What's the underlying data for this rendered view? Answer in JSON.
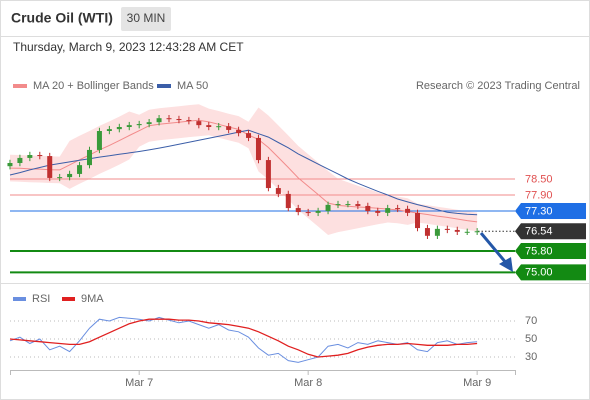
{
  "header": {
    "title": "Crude Oil (WTI)",
    "timeframe": "30 MIN",
    "datetime": "Thursday, March 9, 2023 12:43:28 AM CET"
  },
  "chart_data": [
    {
      "type": "candlestick",
      "credit": "Research © 2023 Trading Central",
      "categories": [
        null,
        null,
        null,
        null,
        null,
        null,
        null,
        null,
        null,
        null,
        null,
        null,
        null,
        "Mar 7",
        null,
        null,
        null,
        null,
        null,
        null,
        null,
        null,
        null,
        null,
        null,
        null,
        null,
        null,
        null,
        null,
        "Mar 8",
        null,
        null,
        null,
        null,
        null,
        null,
        null,
        null,
        null,
        null,
        null,
        null,
        null,
        null,
        null,
        null,
        "Mar 9",
        null,
        null,
        null
      ],
      "open": [
        78.98,
        79.1,
        79.29,
        79.4,
        79.36,
        78.54,
        78.57,
        78.69,
        79.02,
        79.59,
        80.3,
        80.37,
        80.45,
        80.52,
        80.56,
        80.63,
        80.78,
        80.75,
        80.71,
        80.67,
        80.52,
        80.45,
        80.48,
        80.34,
        80.22,
        80.04,
        79.21,
        78.16,
        77.94,
        77.41,
        77.26,
        77.23,
        77.3,
        77.53,
        77.56,
        77.56,
        77.49,
        77.3,
        77.23,
        77.41,
        77.38,
        77.23,
        76.66,
        76.37,
        76.63,
        76.59,
        76.52,
        76.52,
        null,
        null,
        null
      ],
      "high": [
        79.22,
        79.41,
        79.52,
        79.52,
        79.48,
        78.69,
        78.81,
        79.14,
        79.71,
        80.42,
        80.49,
        80.57,
        80.64,
        80.68,
        80.75,
        80.9,
        80.9,
        80.87,
        80.83,
        80.79,
        80.64,
        80.6,
        80.6,
        80.46,
        80.34,
        80.16,
        79.33,
        78.28,
        78.06,
        77.53,
        77.38,
        77.42,
        77.65,
        77.68,
        77.68,
        77.68,
        77.61,
        77.42,
        77.53,
        77.53,
        77.5,
        77.35,
        76.78,
        76.75,
        76.75,
        76.71,
        76.64,
        76.66,
        null,
        null,
        null
      ],
      "low": [
        78.86,
        78.98,
        79.17,
        79.24,
        78.42,
        78.42,
        78.45,
        78.57,
        78.9,
        79.47,
        80.18,
        80.25,
        80.33,
        80.4,
        80.44,
        80.51,
        80.63,
        80.59,
        80.55,
        80.4,
        80.33,
        80.33,
        80.22,
        80.1,
        79.92,
        79.09,
        78.04,
        77.82,
        77.29,
        77.14,
        77.11,
        77.11,
        77.18,
        77.41,
        77.44,
        77.37,
        77.18,
        77.11,
        77.11,
        77.26,
        77.11,
        76.54,
        76.25,
        76.25,
        76.47,
        76.4,
        76.4,
        76.4,
        null,
        null,
        null
      ],
      "close": [
        79.1,
        79.29,
        79.4,
        79.36,
        78.54,
        78.57,
        78.69,
        79.02,
        79.59,
        80.3,
        80.37,
        80.45,
        80.52,
        80.56,
        80.63,
        80.78,
        80.75,
        80.71,
        80.67,
        80.52,
        80.45,
        80.48,
        80.34,
        80.22,
        80.04,
        79.21,
        78.16,
        77.94,
        77.41,
        77.26,
        77.23,
        77.3,
        77.53,
        77.56,
        77.56,
        77.49,
        77.3,
        77.23,
        77.41,
        77.38,
        77.23,
        76.66,
        76.37,
        76.63,
        76.59,
        76.52,
        76.52,
        76.54,
        null,
        null,
        null
      ],
      "up_color": "#3a9a3a",
      "down_color": "#c03030",
      "ylim": [
        74.6,
        81.65
      ],
      "series": [
        {
          "name": "MA 20 + Bollinger Bands",
          "color": "#f28b8b",
          "band_color": "#fde0e0",
          "values": [
            78.91,
            78.9,
            78.88,
            78.87,
            78.85,
            78.84,
            79.03,
            79.22,
            79.4,
            79.59,
            79.76,
            79.94,
            80.13,
            80.31,
            80.5,
            80.55,
            80.59,
            80.63,
            80.67,
            80.7,
            80.64,
            80.55,
            80.45,
            80.36,
            80.15,
            79.98,
            79.68,
            79.31,
            78.93,
            78.54,
            78.23,
            77.92,
            77.6,
            77.51,
            77.48,
            77.45,
            77.43,
            77.4,
            77.37,
            77.34,
            77.28,
            77.22,
            77.17,
            77.11,
            77.06,
            77.0,
            76.94,
            76.89,
            null,
            null,
            null
          ],
          "upper": [
            79.41,
            79.4,
            79.38,
            79.37,
            79.35,
            79.34,
            79.93,
            80.12,
            80.3,
            80.49,
            80.66,
            80.84,
            81.03,
            80.91,
            81.1,
            81.15,
            81.19,
            81.23,
            81.27,
            81.3,
            81.14,
            81.05,
            80.95,
            80.86,
            80.65,
            81.18,
            80.88,
            80.51,
            80.13,
            79.74,
            79.43,
            79.12,
            78.8,
            78.51,
            78.38,
            78.25,
            78.13,
            78.0,
            77.87,
            77.84,
            77.78,
            77.57,
            77.52,
            77.46,
            77.41,
            77.35,
            77.29,
            77.24,
            null,
            null,
            null
          ],
          "lower": [
            78.41,
            78.4,
            78.38,
            78.37,
            78.35,
            78.34,
            78.13,
            78.32,
            78.5,
            78.69,
            78.86,
            79.04,
            79.23,
            79.71,
            79.9,
            79.95,
            79.99,
            80.03,
            80.07,
            80.1,
            80.14,
            80.05,
            79.95,
            79.86,
            79.65,
            78.78,
            78.48,
            78.11,
            77.73,
            77.34,
            77.03,
            76.72,
            76.4,
            76.51,
            76.58,
            76.65,
            76.73,
            76.8,
            76.87,
            76.84,
            76.78,
            76.87,
            76.82,
            76.76,
            76.71,
            76.65,
            76.59,
            76.54,
            null,
            null,
            null
          ]
        },
        {
          "name": "MA 50",
          "color": "#3b5ea8",
          "values": [
            78.65,
            78.74,
            78.84,
            78.93,
            79.02,
            79.08,
            79.14,
            79.2,
            79.26,
            79.32,
            79.37,
            79.43,
            79.48,
            79.53,
            79.59,
            79.66,
            79.73,
            79.8,
            79.88,
            79.95,
            80.03,
            80.1,
            80.18,
            80.26,
            80.33,
            80.2,
            80.07,
            79.87,
            79.67,
            79.44,
            79.25,
            79.06,
            78.87,
            78.69,
            78.5,
            78.34,
            78.19,
            78.04,
            77.9,
            77.75,
            77.64,
            77.54,
            77.45,
            77.35,
            77.25,
            77.21,
            77.18,
            77.16,
            null,
            null,
            null
          ]
        }
      ],
      "levels": [
        {
          "value": 78.5,
          "label": "78.50",
          "color": "#f28b8b",
          "filled": false
        },
        {
          "value": 77.9,
          "label": "77.90",
          "color": "#f28b8b",
          "filled": false
        },
        {
          "value": 77.3,
          "label": "77.30",
          "color": "#1f6fe5",
          "filled": true
        },
        {
          "value": 76.54,
          "label": "76.54",
          "color": "#333333",
          "filled": true,
          "dotted": true
        },
        {
          "value": 75.8,
          "label": "75.80",
          "color": "#138a13",
          "filled": true
        },
        {
          "value": 75.0,
          "label": "75.00",
          "color": "#138a13",
          "filled": true
        }
      ]
    },
    {
      "type": "line",
      "ylim": [
        15,
        100
      ],
      "yticks": [
        30,
        50,
        70
      ],
      "grid": true,
      "series": [
        {
          "name": "RSI",
          "color": "#6a8fe0",
          "values": [
            48,
            52,
            45,
            50,
            38,
            42,
            36,
            48,
            62,
            72,
            70,
            74,
            73,
            72,
            70,
            74,
            71,
            68,
            70,
            66,
            62,
            66,
            60,
            58,
            52,
            40,
            32,
            34,
            26,
            24,
            27,
            30,
            42,
            44,
            40,
            46,
            44,
            48,
            46,
            44,
            46,
            38,
            36,
            46,
            48,
            44,
            46,
            47,
            null,
            null,
            null
          ]
        },
        {
          "name": "9MA",
          "color": "#e02020",
          "values": [
            50,
            49,
            48,
            47,
            46,
            45,
            44,
            44,
            47,
            52,
            57,
            62,
            67,
            70,
            72,
            72,
            72,
            71,
            71,
            70,
            68,
            67,
            66,
            64,
            62,
            58,
            53,
            48,
            42,
            38,
            33,
            30,
            31,
            32,
            34,
            38,
            41,
            43,
            44,
            44,
            45,
            44,
            43,
            43,
            43,
            44,
            44,
            45,
            null,
            null,
            null
          ]
        }
      ]
    }
  ]
}
